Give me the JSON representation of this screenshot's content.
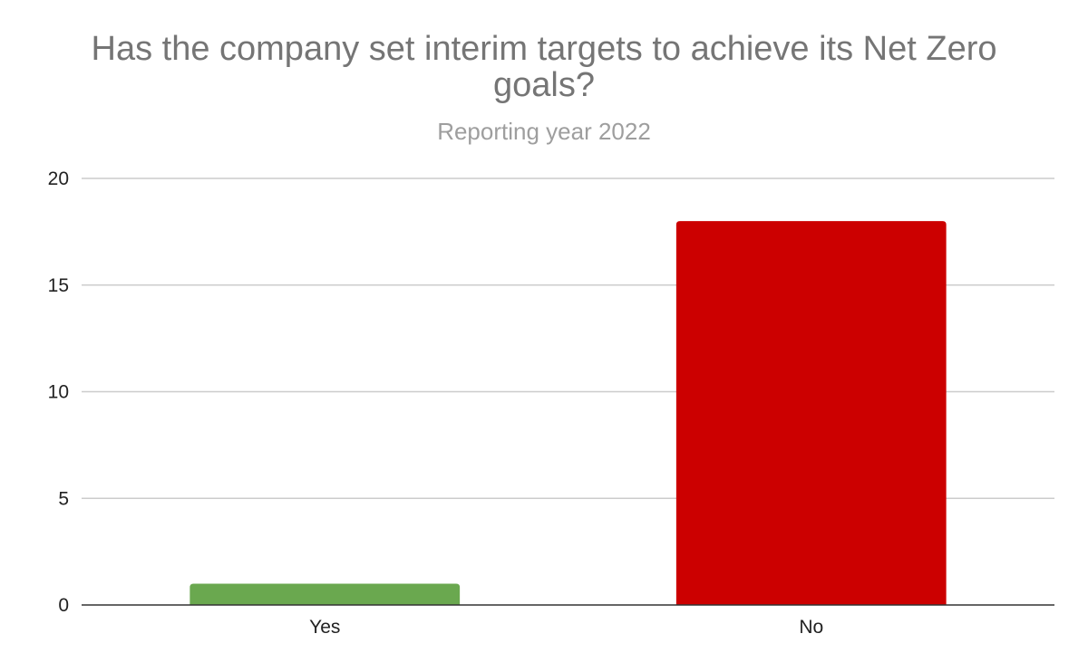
{
  "chart_data": {
    "type": "bar",
    "title": "Has the company set interim targets to achieve its Net Zero goals?",
    "subtitle": "Reporting year 2022",
    "xlabel": "",
    "ylabel": "",
    "categories": [
      "Yes",
      "No"
    ],
    "values": [
      1,
      18
    ],
    "colors": [
      "#6aa84f",
      "#cc0000"
    ],
    "ylim": [
      0,
      20
    ],
    "yticks": [
      0,
      5,
      10,
      15,
      20
    ],
    "grid": true,
    "legend": "none"
  }
}
